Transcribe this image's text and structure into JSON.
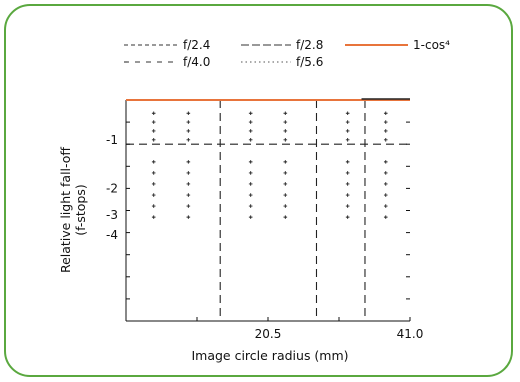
{
  "chart_data": {
    "type": "line",
    "xlabel": "Image circle radius (mm)",
    "ylabel": "Relative light fall-off",
    "ylabel_sub": "(f-stops)",
    "xlim": [
      0,
      41.0
    ],
    "ylim": [
      -5,
      0
    ],
    "x_tick_labels": [
      {
        "value": 20.5,
        "label": "20.5"
      },
      {
        "value": 41.0,
        "label": "41.0"
      }
    ],
    "y_tick_labels": [
      {
        "value": -1,
        "label": "-1"
      },
      {
        "value": -2,
        "label": "-2"
      },
      {
        "value": -3,
        "label": "-3"
      },
      {
        "value": -4,
        "label": "-4"
      }
    ],
    "legend": [
      {
        "label": "f/2.4",
        "style": "dashed-short",
        "color": "#333333"
      },
      {
        "label": "f/2.8",
        "style": "dashed-long",
        "color": "#333333"
      },
      {
        "label": "1-cos⁴",
        "style": "solid",
        "color": "#e8743b"
      },
      {
        "label": "f/4.0",
        "style": "dashed-sparse",
        "color": "#333333"
      },
      {
        "label": "f/5.6",
        "style": "dotted",
        "color": "#555555"
      }
    ],
    "series": [
      {
        "name": "f/2.4",
        "x": [
          0,
          10,
          20.5,
          30,
          41.0
        ],
        "y": [
          0,
          0,
          0,
          0,
          0
        ]
      },
      {
        "name": "f/2.8",
        "x": [
          0,
          10,
          20.5,
          30,
          41.0
        ],
        "y": [
          0,
          0,
          0,
          0,
          0
        ]
      },
      {
        "name": "f/4.0",
        "x": [
          0,
          10,
          20.5,
          30,
          41.0
        ],
        "y": [
          0,
          0,
          0,
          0,
          0
        ]
      },
      {
        "name": "f/5.6",
        "x": [
          0,
          10,
          20.5,
          30,
          41.0
        ],
        "y": [
          0,
          0,
          0,
          0,
          0
        ]
      },
      {
        "name": "1-cos⁴",
        "x": [
          0,
          10,
          20.5,
          30,
          41.0
        ],
        "y": [
          0,
          0,
          0,
          0,
          0
        ]
      }
    ],
    "grid": "dashed-lines-with-point-markers",
    "legend_position": "top",
    "colors": {
      "border": "#5aa83f",
      "accent": "#e8743b",
      "ink": "#111111"
    }
  }
}
